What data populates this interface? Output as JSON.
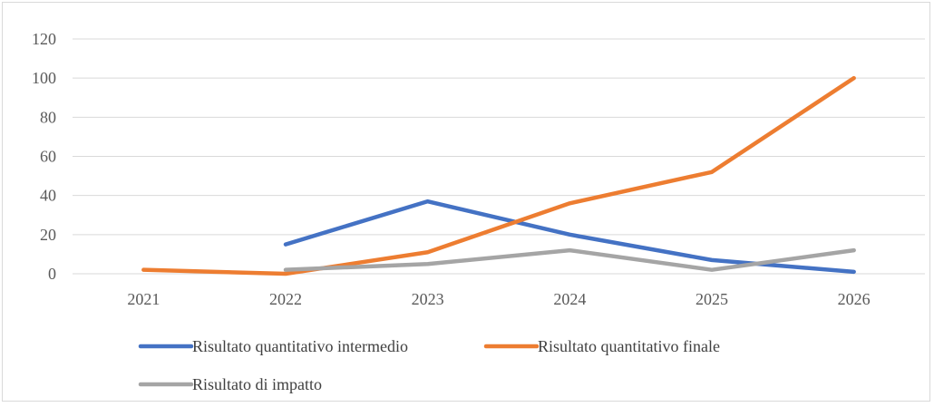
{
  "chart_data": {
    "type": "line",
    "title": "",
    "xlabel": "",
    "ylabel": "",
    "categories": [
      "2021",
      "2022",
      "2023",
      "2024",
      "2025",
      "2026"
    ],
    "ylim": [
      0,
      120
    ],
    "yticks": [
      0,
      20,
      40,
      60,
      80,
      100,
      120
    ],
    "grid": true,
    "legend_position": "bottom",
    "series": [
      {
        "name": "Risultato quantitativo intermedio",
        "color": "#4472c4",
        "values": [
          null,
          15,
          37,
          20,
          7,
          1
        ]
      },
      {
        "name": "Risultato quantitativo finale",
        "color": "#ed7d31",
        "values": [
          2,
          0,
          11,
          36,
          52,
          100
        ]
      },
      {
        "name": "Risultato di impatto",
        "color": "#a5a5a5",
        "values": [
          null,
          2,
          5,
          12,
          2,
          12
        ]
      }
    ]
  }
}
